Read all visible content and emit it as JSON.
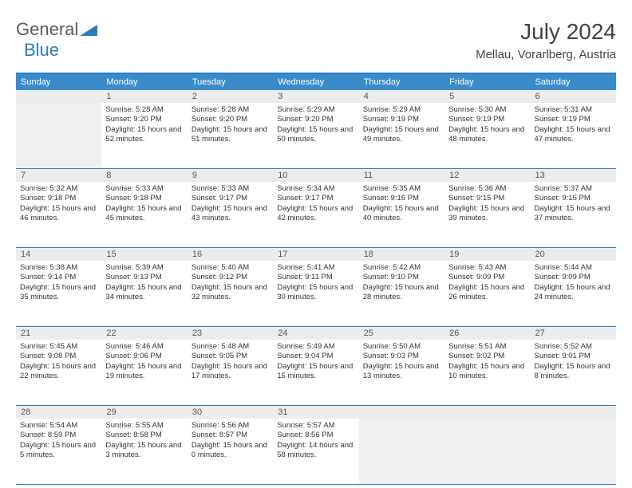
{
  "logo": {
    "part1": "General",
    "part2": "Blue"
  },
  "title": "July 2024",
  "location": "Mellau, Vorarlberg, Austria",
  "header_bg": "#3a8bc9",
  "border_color": "#2b7bbf",
  "day_labels": [
    "Sunday",
    "Monday",
    "Tuesday",
    "Wednesday",
    "Thursday",
    "Friday",
    "Saturday"
  ],
  "weeks": [
    {
      "nums": [
        "",
        "1",
        "2",
        "3",
        "4",
        "5",
        "6"
      ],
      "cells": [
        null,
        {
          "sunrise": "5:28 AM",
          "sunset": "9:20 PM",
          "daylight": "15 hours and 52 minutes."
        },
        {
          "sunrise": "5:28 AM",
          "sunset": "9:20 PM",
          "daylight": "15 hours and 51 minutes."
        },
        {
          "sunrise": "5:29 AM",
          "sunset": "9:20 PM",
          "daylight": "15 hours and 50 minutes."
        },
        {
          "sunrise": "5:29 AM",
          "sunset": "9:19 PM",
          "daylight": "15 hours and 49 minutes."
        },
        {
          "sunrise": "5:30 AM",
          "sunset": "9:19 PM",
          "daylight": "15 hours and 48 minutes."
        },
        {
          "sunrise": "5:31 AM",
          "sunset": "9:19 PM",
          "daylight": "15 hours and 47 minutes."
        }
      ]
    },
    {
      "nums": [
        "7",
        "8",
        "9",
        "10",
        "11",
        "12",
        "13"
      ],
      "cells": [
        {
          "sunrise": "5:32 AM",
          "sunset": "9:18 PM",
          "daylight": "15 hours and 46 minutes."
        },
        {
          "sunrise": "5:33 AM",
          "sunset": "9:18 PM",
          "daylight": "15 hours and 45 minutes."
        },
        {
          "sunrise": "5:33 AM",
          "sunset": "9:17 PM",
          "daylight": "15 hours and 43 minutes."
        },
        {
          "sunrise": "5:34 AM",
          "sunset": "9:17 PM",
          "daylight": "15 hours and 42 minutes."
        },
        {
          "sunrise": "5:35 AM",
          "sunset": "9:16 PM",
          "daylight": "15 hours and 40 minutes."
        },
        {
          "sunrise": "5:36 AM",
          "sunset": "9:15 PM",
          "daylight": "15 hours and 39 minutes."
        },
        {
          "sunrise": "5:37 AM",
          "sunset": "9:15 PM",
          "daylight": "15 hours and 37 minutes."
        }
      ]
    },
    {
      "nums": [
        "14",
        "15",
        "16",
        "17",
        "18",
        "19",
        "20"
      ],
      "cells": [
        {
          "sunrise": "5:38 AM",
          "sunset": "9:14 PM",
          "daylight": "15 hours and 35 minutes."
        },
        {
          "sunrise": "5:39 AM",
          "sunset": "9:13 PM",
          "daylight": "15 hours and 34 minutes."
        },
        {
          "sunrise": "5:40 AM",
          "sunset": "9:12 PM",
          "daylight": "15 hours and 32 minutes."
        },
        {
          "sunrise": "5:41 AM",
          "sunset": "9:11 PM",
          "daylight": "15 hours and 30 minutes."
        },
        {
          "sunrise": "5:42 AM",
          "sunset": "9:10 PM",
          "daylight": "15 hours and 28 minutes."
        },
        {
          "sunrise": "5:43 AM",
          "sunset": "9:09 PM",
          "daylight": "15 hours and 26 minutes."
        },
        {
          "sunrise": "5:44 AM",
          "sunset": "9:09 PM",
          "daylight": "15 hours and 24 minutes."
        }
      ]
    },
    {
      "nums": [
        "21",
        "22",
        "23",
        "24",
        "25",
        "26",
        "27"
      ],
      "cells": [
        {
          "sunrise": "5:45 AM",
          "sunset": "9:08 PM",
          "daylight": "15 hours and 22 minutes."
        },
        {
          "sunrise": "5:46 AM",
          "sunset": "9:06 PM",
          "daylight": "15 hours and 19 minutes."
        },
        {
          "sunrise": "5:48 AM",
          "sunset": "9:05 PM",
          "daylight": "15 hours and 17 minutes."
        },
        {
          "sunrise": "5:49 AM",
          "sunset": "9:04 PM",
          "daylight": "15 hours and 15 minutes."
        },
        {
          "sunrise": "5:50 AM",
          "sunset": "9:03 PM",
          "daylight": "15 hours and 13 minutes."
        },
        {
          "sunrise": "5:51 AM",
          "sunset": "9:02 PM",
          "daylight": "15 hours and 10 minutes."
        },
        {
          "sunrise": "5:52 AM",
          "sunset": "9:01 PM",
          "daylight": "15 hours and 8 minutes."
        }
      ]
    },
    {
      "nums": [
        "28",
        "29",
        "30",
        "31",
        "",
        "",
        ""
      ],
      "cells": [
        {
          "sunrise": "5:54 AM",
          "sunset": "8:59 PM",
          "daylight": "15 hours and 5 minutes."
        },
        {
          "sunrise": "5:55 AM",
          "sunset": "8:58 PM",
          "daylight": "15 hours and 3 minutes."
        },
        {
          "sunrise": "5:56 AM",
          "sunset": "8:57 PM",
          "daylight": "15 hours and 0 minutes."
        },
        {
          "sunrise": "5:57 AM",
          "sunset": "8:56 PM",
          "daylight": "14 hours and 58 minutes."
        },
        null,
        null,
        null
      ]
    }
  ],
  "labels": {
    "sunrise": "Sunrise:",
    "sunset": "Sunset:",
    "daylight": "Daylight:"
  }
}
